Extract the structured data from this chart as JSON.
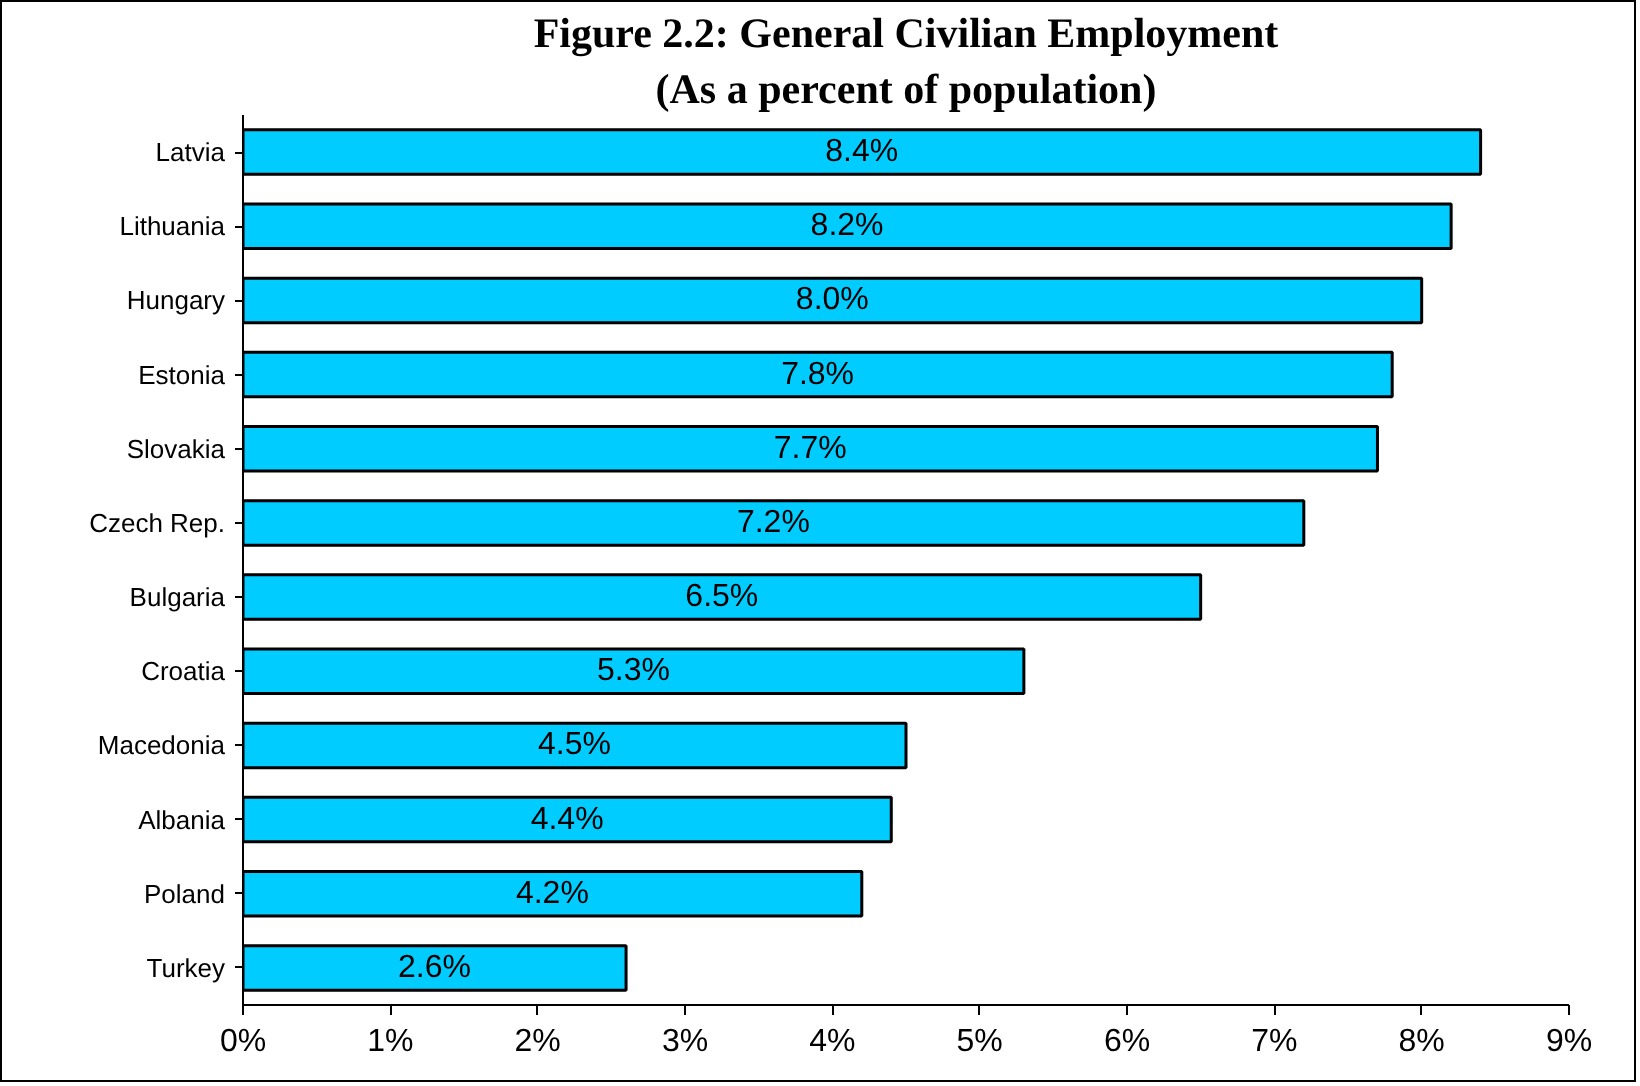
{
  "chart_data": {
    "type": "bar",
    "orientation": "horizontal",
    "title": "Figure 2.2: General Civilian Employment",
    "subtitle": "(As a percent of population)",
    "categories": [
      "Latvia",
      "Lithuania",
      "Hungary",
      "Estonia",
      "Slovakia",
      "Czech Rep.",
      "Bulgaria",
      "Croatia",
      "Macedonia",
      "Albania",
      "Poland",
      "Turkey"
    ],
    "values": [
      8.4,
      8.2,
      8.0,
      7.8,
      7.7,
      7.2,
      6.5,
      5.3,
      4.5,
      4.4,
      4.2,
      2.6
    ],
    "value_labels": [
      "8.4%",
      "8.2%",
      "8.0%",
      "7.8%",
      "7.7%",
      "7.2%",
      "6.5%",
      "5.3%",
      "4.5%",
      "4.4%",
      "4.2%",
      "2.6%"
    ],
    "color": "#00ccff",
    "xlim": [
      0,
      9
    ],
    "xticks": [
      {
        "value": 0,
        "label": "0%"
      },
      {
        "value": 1,
        "label": "1%"
      },
      {
        "value": 2,
        "label": "2%"
      },
      {
        "value": 3,
        "label": "3%"
      },
      {
        "value": 4,
        "label": "4%"
      },
      {
        "value": 5,
        "label": "5%"
      },
      {
        "value": 6,
        "label": "6%"
      },
      {
        "value": 7,
        "label": "7%"
      },
      {
        "value": 8,
        "label": "8%"
      },
      {
        "value": 9,
        "label": "9%"
      }
    ],
    "grid": false
  }
}
